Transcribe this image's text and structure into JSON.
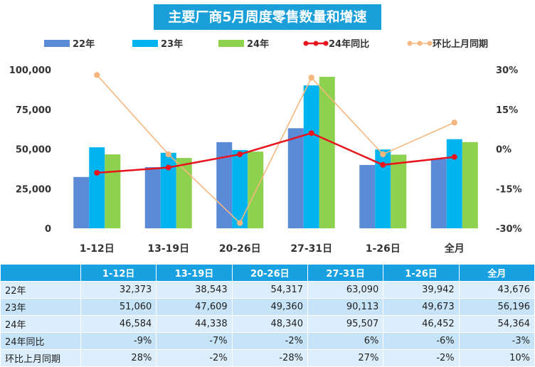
{
  "chart_data": {
    "type": "bar",
    "title": "主要厂商5月周度零售数量和增速",
    "categories": [
      "1-12日",
      "13-19日",
      "20-26日",
      "27-31日",
      "1-26日",
      "全月"
    ],
    "series": [
      {
        "name": "22年",
        "type": "bar",
        "color": "#5b8bd6",
        "values": [
          32373,
          38543,
          54317,
          63090,
          39942,
          43676
        ]
      },
      {
        "name": "23年",
        "type": "bar",
        "color": "#00b4f0",
        "values": [
          51060,
          47609,
          49360,
          90113,
          49673,
          56196
        ]
      },
      {
        "name": "24年",
        "type": "bar",
        "color": "#8ed14e",
        "values": [
          46584,
          44338,
          48340,
          95507,
          46452,
          54364
        ]
      },
      {
        "name": "24年同比",
        "type": "line",
        "axis": "right",
        "color": "#e8141e",
        "values": [
          -9,
          -7,
          -2,
          6,
          -6,
          -3
        ]
      },
      {
        "name": "环比上月同期",
        "type": "line",
        "axis": "right",
        "color": "#f5b77f",
        "values": [
          28,
          -2,
          -28,
          27,
          -2,
          10
        ]
      }
    ],
    "y_left": {
      "ylim": [
        0,
        100000
      ],
      "ticks": [
        "0",
        "25,000",
        "50,000",
        "75,000",
        "100,000"
      ]
    },
    "y_right": {
      "ylim": [
        -30,
        30
      ],
      "ticks": [
        "-30%",
        "-15%",
        "0%",
        "15%",
        "30%"
      ]
    },
    "legend_position": "top",
    "grid": false
  },
  "table": {
    "headers": [
      "",
      "1-12日",
      "13-19日",
      "20-26日",
      "27-31日",
      "1-26日",
      "全月"
    ],
    "rows": [
      {
        "label": "22年",
        "cells": [
          "32,373",
          "38,543",
          "54,317",
          "63,090",
          "39,942",
          "43,676"
        ]
      },
      {
        "label": "23年",
        "cells": [
          "51,060",
          "47,609",
          "49,360",
          "90,113",
          "49,673",
          "56,196"
        ]
      },
      {
        "label": "24年",
        "cells": [
          "46,584",
          "44,338",
          "48,340",
          "95,507",
          "46,452",
          "54,364"
        ]
      },
      {
        "label": "24年同比",
        "cells": [
          "-9%",
          "-7%",
          "-2%",
          "6%",
          "-6%",
          "-3%"
        ]
      },
      {
        "label": "环比上月同期",
        "cells": [
          "28%",
          "-2%",
          "-28%",
          "27%",
          "-2%",
          "10%"
        ]
      }
    ]
  }
}
